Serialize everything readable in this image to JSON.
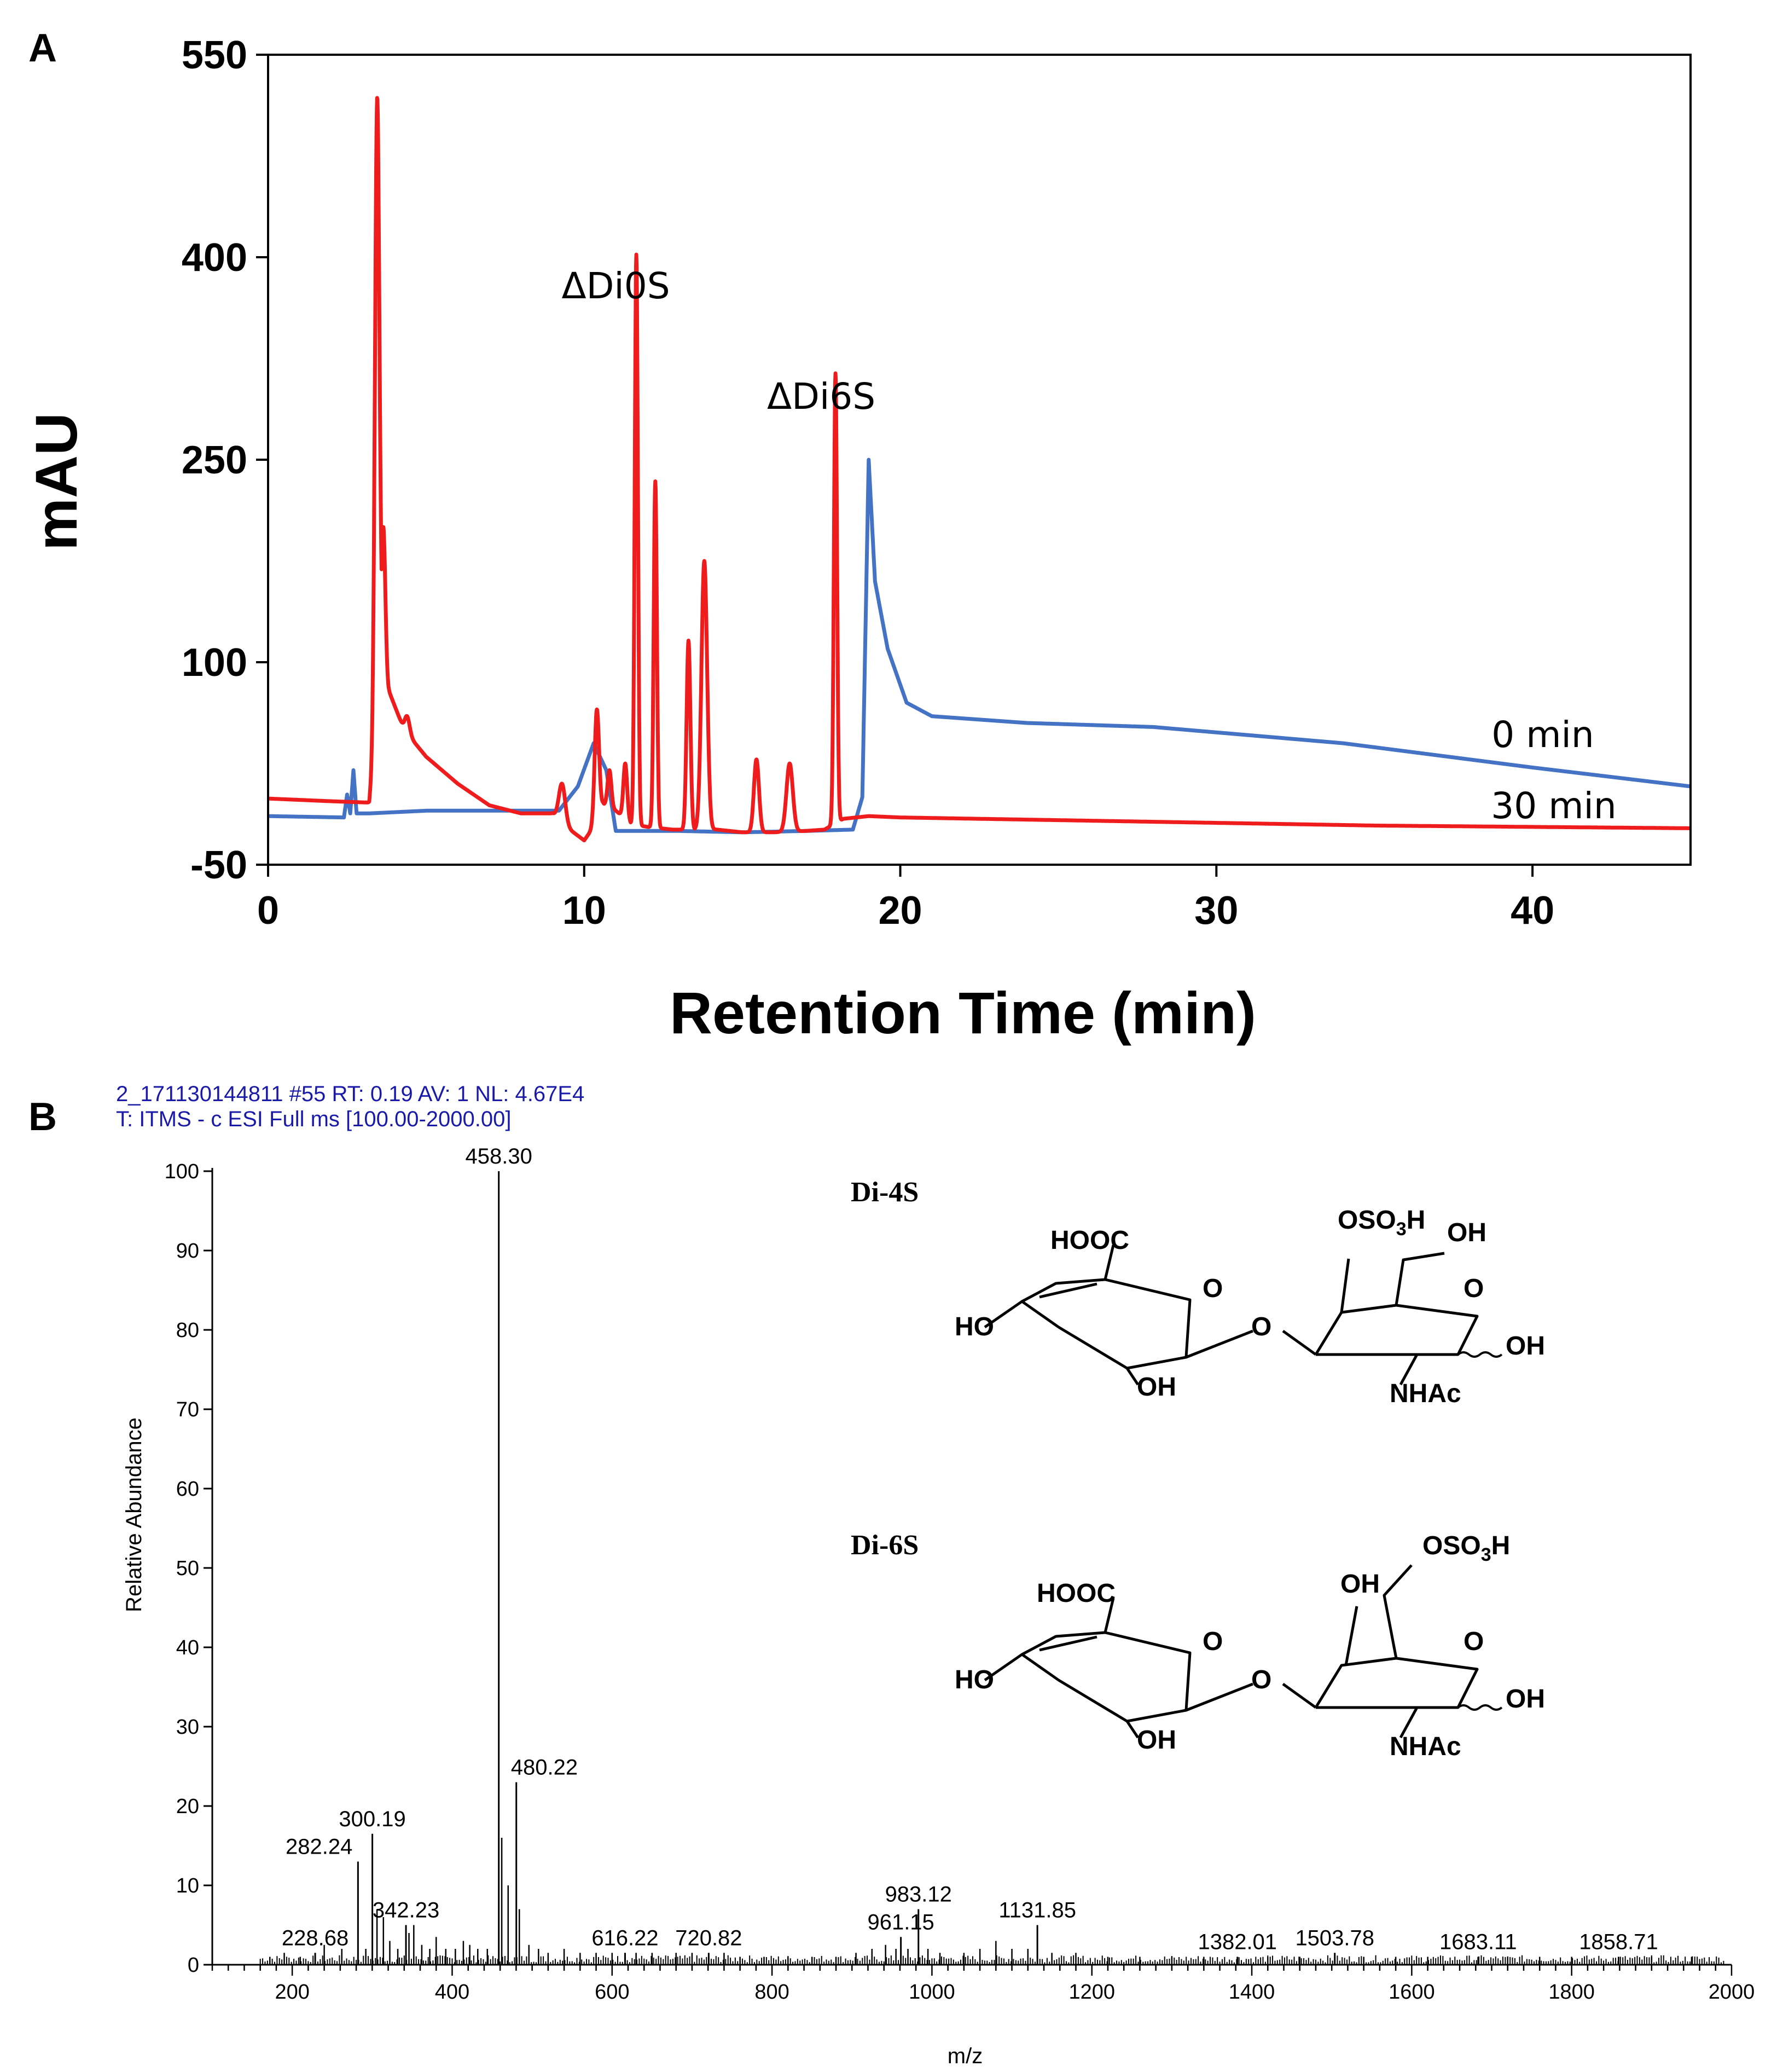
{
  "chart_data": [
    {
      "panel": "A",
      "type": "line",
      "xlabel": "Retention Time (min)",
      "ylabel": "mAU",
      "xlim": [
        0,
        45
      ],
      "ylim": [
        -50,
        550
      ],
      "xticks": [
        "0",
        "10",
        "20",
        "30",
        "40"
      ],
      "yticks": [
        "550",
        "400",
        "250",
        "100",
        "-50"
      ],
      "annotations": [
        {
          "text": "ΔDi0S",
          "x": 11,
          "y": 400
        },
        {
          "text": "ΔDi6S",
          "x": 17.5,
          "y": 312
        }
      ],
      "series": [
        {
          "name": "0 min",
          "color": "#4472c4",
          "baseline": [
            [
              0,
              -14
            ],
            [
              2.4,
              -15
            ],
            [
              2.5,
              2
            ],
            [
              2.6,
              -12
            ],
            [
              2.7,
              20
            ],
            [
              2.8,
              -12
            ],
            [
              3.2,
              -12
            ],
            [
              5,
              -10
            ],
            [
              7,
              -10
            ],
            [
              9.2,
              -10
            ],
            [
              9.8,
              8
            ],
            [
              10.3,
              40
            ],
            [
              10.7,
              20
            ],
            [
              11,
              -25
            ],
            [
              12,
              -25
            ],
            [
              13,
              -25
            ],
            [
              15,
              -26
            ],
            [
              17,
              -25
            ],
            [
              18.5,
              -24
            ],
            [
              18.8,
              0
            ],
            [
              19.0,
              250
            ],
            [
              19.2,
              160
            ],
            [
              19.6,
              110
            ],
            [
              20.2,
              70
            ],
            [
              21,
              60
            ],
            [
              24,
              55
            ],
            [
              28,
              52
            ],
            [
              34,
              40
            ],
            [
              40,
              22
            ],
            [
              45,
              8
            ]
          ],
          "peaks": []
        },
        {
          "name": "30 min",
          "color": "#ee1c1c",
          "baseline": [
            [
              0,
              -1
            ],
            [
              1,
              -2
            ],
            [
              2,
              -3
            ],
            [
              3.2,
              -4
            ],
            [
              3.4,
              40
            ],
            [
              3.6,
              110
            ],
            [
              3.8,
              80
            ],
            [
              4.3,
              50
            ],
            [
              5,
              30
            ],
            [
              5.5,
              20
            ],
            [
              6,
              10
            ],
            [
              7,
              -6
            ],
            [
              8,
              -12
            ],
            [
              9,
              -12
            ],
            [
              9.6,
              -25
            ],
            [
              10,
              -32
            ],
            [
              10.3,
              -22
            ],
            [
              10.6,
              -5
            ],
            [
              11,
              -10
            ],
            [
              11.5,
              -20
            ],
            [
              12,
              -22
            ],
            [
              12.8,
              -24
            ],
            [
              13.5,
              -24
            ],
            [
              14.2,
              -24
            ],
            [
              15,
              -26
            ],
            [
              16,
              -26
            ],
            [
              17,
              -25
            ],
            [
              17.6,
              -24
            ],
            [
              18.2,
              -16
            ],
            [
              19,
              -14
            ],
            [
              20,
              -15
            ],
            [
              25,
              -17
            ],
            [
              30,
              -19
            ],
            [
              35,
              -21
            ],
            [
              40,
              -22
            ],
            [
              45,
              -23
            ]
          ],
          "peaks": [
            [
              3.45,
              518,
              0.07
            ],
            [
              3.65,
              200,
              0.06
            ],
            [
              4.4,
              60,
              0.08
            ],
            [
              4.55,
              20,
              0.06
            ],
            [
              5.1,
              10,
              0.07
            ],
            [
              9.3,
              10,
              0.1
            ],
            [
              10.4,
              65,
              0.07
            ],
            [
              10.8,
              20,
              0.06
            ],
            [
              11.3,
              25,
              0.06
            ],
            [
              11.65,
              402,
              0.05
            ],
            [
              12.25,
              234,
              0.05
            ],
            [
              13.3,
              116,
              0.06
            ],
            [
              13.8,
              175,
              0.09
            ],
            [
              15.45,
              28,
              0.08
            ],
            [
              16.5,
              25,
              0.1
            ],
            [
              17.95,
              314,
              0.05
            ]
          ]
        }
      ],
      "legend_labels": [
        {
          "text": "0 min",
          "color": "#000000"
        },
        {
          "text": "30 min",
          "color": "#000000"
        }
      ]
    },
    {
      "panel": "B",
      "type": "bar",
      "header_line1": "2_171130144811 #55  RT: 0.19  AV: 1  NL: 4.67E4",
      "header_line2": "T: ITMS - c ESI Full ms [100.00-2000.00]",
      "xlabel": "m/z",
      "ylabel": "Relative Abundance",
      "xlim": [
        100,
        2000
      ],
      "ylim": [
        0,
        100
      ],
      "xticks": [
        "200",
        "400",
        "600",
        "800",
        "1000",
        "1200",
        "1400",
        "1600",
        "1800",
        "2000"
      ],
      "yticks": [
        "0",
        "10",
        "20",
        "30",
        "40",
        "50",
        "60",
        "70",
        "80",
        "90",
        "100"
      ],
      "labeled_peaks": [
        {
          "mz": 228.68,
          "abundance": 1.5,
          "label": "228.68"
        },
        {
          "mz": 282.24,
          "abundance": 13,
          "label": "282.24"
        },
        {
          "mz": 300.19,
          "abundance": 16.5,
          "label": "300.19"
        },
        {
          "mz": 342.23,
          "abundance": 5,
          "label": "342.23"
        },
        {
          "mz": 458.3,
          "abundance": 100,
          "label": "458.30"
        },
        {
          "mz": 480.22,
          "abundance": 23,
          "label": "480.22"
        },
        {
          "mz": 616.22,
          "abundance": 1.5,
          "label": "616.22"
        },
        {
          "mz": 720.82,
          "abundance": 1.5,
          "label": "720.82"
        },
        {
          "mz": 961.15,
          "abundance": 3.5,
          "label": "961.15"
        },
        {
          "mz": 983.12,
          "abundance": 7,
          "label": "983.12"
        },
        {
          "mz": 1131.85,
          "abundance": 5,
          "label": "1131.85"
        },
        {
          "mz": 1382.01,
          "abundance": 1,
          "label": "1382.01"
        },
        {
          "mz": 1503.78,
          "abundance": 1.5,
          "label": "1503.78"
        },
        {
          "mz": 1683.11,
          "abundance": 1,
          "label": "1683.11"
        },
        {
          "mz": 1858.71,
          "abundance": 1,
          "label": "1858.71"
        }
      ],
      "minor_peaks": [
        [
          172,
          1
        ],
        [
          190,
          1.5
        ],
        [
          210,
          1
        ],
        [
          240,
          2.5
        ],
        [
          262,
          2
        ],
        [
          292,
          2
        ],
        [
          306,
          7
        ],
        [
          314,
          6
        ],
        [
          322,
          3
        ],
        [
          332,
          2
        ],
        [
          346,
          4
        ],
        [
          352,
          5
        ],
        [
          362,
          2.5
        ],
        [
          372,
          2
        ],
        [
          380,
          3.5
        ],
        [
          392,
          2
        ],
        [
          404,
          2
        ],
        [
          414,
          3
        ],
        [
          422,
          2.5
        ],
        [
          432,
          2
        ],
        [
          444,
          2
        ],
        [
          462,
          16
        ],
        [
          470,
          10
        ],
        [
          484,
          7
        ],
        [
          496,
          2.5
        ],
        [
          508,
          2
        ],
        [
          520,
          1.5
        ],
        [
          540,
          2
        ],
        [
          560,
          1.5
        ],
        [
          580,
          1.5
        ],
        [
          600,
          1.5
        ],
        [
          630,
          1.5
        ],
        [
          650,
          1.5
        ],
        [
          680,
          1.5
        ],
        [
          700,
          1.5
        ],
        [
          740,
          1.5
        ],
        [
          760,
          1
        ],
        [
          790,
          1
        ],
        [
          820,
          1
        ],
        [
          850,
          1
        ],
        [
          880,
          1
        ],
        [
          905,
          1.5
        ],
        [
          925,
          2
        ],
        [
          942,
          2.5
        ],
        [
          955,
          2
        ],
        [
          970,
          2
        ],
        [
          995,
          2
        ],
        [
          1010,
          1.5
        ],
        [
          1040,
          1.5
        ],
        [
          1060,
          2
        ],
        [
          1080,
          3
        ],
        [
          1100,
          2
        ],
        [
          1120,
          2
        ],
        [
          1150,
          1.5
        ],
        [
          1180,
          1.5
        ],
        [
          1220,
          1
        ],
        [
          1260,
          1
        ],
        [
          1300,
          1
        ],
        [
          1340,
          1
        ],
        [
          1420,
          1
        ],
        [
          1460,
          1
        ],
        [
          1540,
          1
        ],
        [
          1580,
          1
        ],
        [
          1620,
          1
        ],
        [
          1720,
          1
        ],
        [
          1760,
          1
        ],
        [
          1800,
          1
        ],
        [
          1900,
          1
        ],
        [
          1950,
          1
        ]
      ],
      "structures": [
        {
          "name": "Di-4S",
          "labels": [
            "HOOC",
            "O",
            "HO",
            "O",
            "OH",
            "OSO3H",
            "OH",
            "O",
            "OH",
            "NHAc"
          ]
        },
        {
          "name": "Di-6S",
          "labels": [
            "HOOC",
            "O",
            "HO",
            "O",
            "OH",
            "OH",
            "OSO3H",
            "O",
            "OH",
            "NHAc"
          ]
        }
      ]
    }
  ]
}
